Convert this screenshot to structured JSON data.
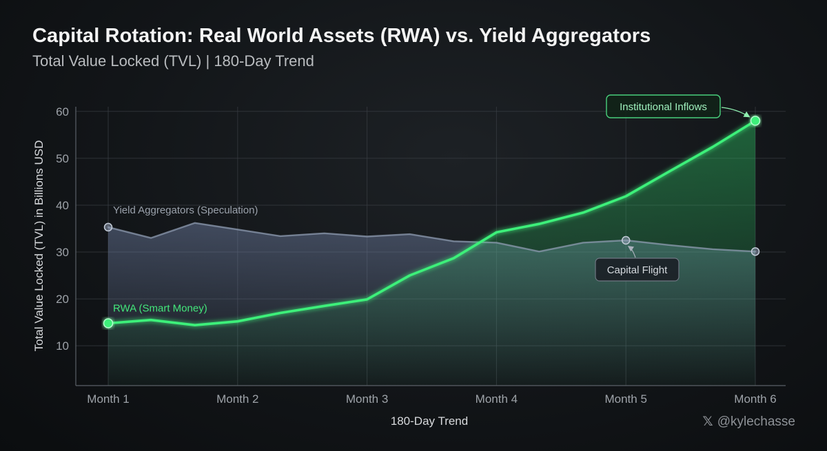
{
  "header": {
    "title": "Capital Rotation: Real World Assets (RWA) vs. Yield Aggregators",
    "subtitle": "Total Value Locked (TVL) | 180-Day Trend"
  },
  "watermark": {
    "icon": "x-logo-icon",
    "handle": "@kylechasse"
  },
  "chart_data": {
    "type": "line",
    "title": "Capital Rotation: Real World Assets (RWA) vs. Yield Aggregators",
    "subtitle": "Total Value Locked (TVL) | 180-Day Trend",
    "xlabel": "180-Day Trend",
    "ylabel": "Total Value Locked (TVL) in Billions USD",
    "categories": [
      "Month 1",
      "Month 2",
      "Month 3",
      "Month 4",
      "Month 5",
      "Month 6"
    ],
    "xlim": [
      1,
      6
    ],
    "ylim": [
      1.5,
      61
    ],
    "yticks": [
      10,
      20,
      30,
      40,
      50,
      60
    ],
    "grid": true,
    "series": [
      {
        "name": "Yield Aggregators (Speculation)",
        "color": "#8e9bb0",
        "x": [
          1,
          1.33,
          1.67,
          2,
          2.33,
          2.67,
          3,
          3.33,
          3.67,
          4,
          4.33,
          4.67,
          5,
          5.33,
          5.67,
          6
        ],
        "values": [
          35.3,
          33.0,
          36.2,
          34.8,
          33.4,
          34.0,
          33.3,
          33.8,
          32.3,
          32.0,
          30.1,
          32.0,
          32.5,
          31.5,
          30.6,
          30.1
        ],
        "markers": [
          1,
          5,
          6
        ]
      },
      {
        "name": "RWA (Smart Money)",
        "color": "#3df07a",
        "x": [
          1,
          1.33,
          1.67,
          2,
          2.33,
          2.67,
          3,
          3.33,
          3.67,
          4,
          4.33,
          4.67,
          5,
          5.33,
          5.67,
          6
        ],
        "values": [
          14.8,
          15.5,
          14.4,
          15.2,
          17.0,
          18.5,
          19.9,
          25.0,
          28.7,
          34.2,
          36.0,
          38.4,
          41.9,
          47.1,
          52.4,
          58.0
        ],
        "markers": [
          1,
          6
        ]
      }
    ],
    "annotations": [
      {
        "text": "Institutional Inflows",
        "series": "RWA (Smart Money)",
        "x": 6,
        "y": 58.0
      },
      {
        "text": "Capital Flight",
        "series": "Yield Aggregators (Speculation)",
        "x": 5,
        "y": 32.5
      }
    ]
  }
}
